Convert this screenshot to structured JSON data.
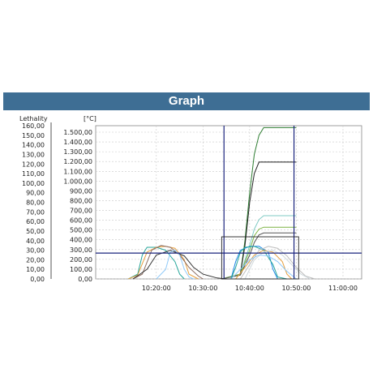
{
  "title": "Graph",
  "chart_data": {
    "type": "line",
    "title": "Graph",
    "left_axis_label": "Lethality",
    "right_axis_label": "[°C]",
    "left_ticks": [
      "160,00",
      "150,00",
      "140,00",
      "130,00",
      "120,00",
      "110,00",
      "100,00",
      "90,00",
      "80,00",
      "70,00",
      "60,00",
      "50,00",
      "40,00",
      "30,00",
      "20,00",
      "10,00",
      "0,00"
    ],
    "right_ticks": [
      "1.500,00",
      "1.400,00",
      "1.300,00",
      "1.200,00",
      "1.100,00",
      "1.000,00",
      "900,00",
      "800,00",
      "700,00",
      "600,00",
      "500,00",
      "400,00",
      "300,00",
      "200,00",
      "100,00",
      "0,00"
    ],
    "x_ticks": [
      "10:20:00",
      "10:30:00",
      "10:40:00",
      "10:50:00",
      "11:00:00"
    ],
    "x_tick_minutes": [
      20,
      30,
      40,
      50,
      60
    ],
    "x_range_minutes": [
      7,
      64
    ],
    "y_range_lethality": [
      0,
      160
    ],
    "grid": true,
    "markers": {
      "vertical_lines_minutes": [
        34.5,
        49.5
      ],
      "horizontal_line_lethality": 27,
      "zoom_box": {
        "x_minutes": [
          34,
          50.5
        ],
        "y_lethality": [
          0,
          44
        ]
      }
    },
    "series": [
      {
        "color": "#2e7d32",
        "points": [
          [
            34,
            0
          ],
          [
            38,
            5
          ],
          [
            39,
            40
          ],
          [
            40,
            90
          ],
          [
            41,
            130
          ],
          [
            42,
            150
          ],
          [
            43,
            158
          ],
          [
            50,
            158
          ]
        ]
      },
      {
        "color": "#222222",
        "points": [
          [
            34,
            0
          ],
          [
            38,
            5
          ],
          [
            39,
            35
          ],
          [
            40,
            80
          ],
          [
            41,
            110
          ],
          [
            42,
            122
          ],
          [
            50,
            122
          ]
        ]
      },
      {
        "color": "#80cbc4",
        "points": [
          [
            34,
            0
          ],
          [
            38,
            5
          ],
          [
            40,
            35
          ],
          [
            41,
            52
          ],
          [
            42,
            62
          ],
          [
            43,
            66
          ],
          [
            50,
            66
          ]
        ]
      },
      {
        "color": "#7cb342",
        "points": [
          [
            34,
            0
          ],
          [
            38,
            5
          ],
          [
            40,
            30
          ],
          [
            41,
            45
          ],
          [
            42,
            52
          ],
          [
            43,
            54
          ],
          [
            50,
            54
          ]
        ]
      },
      {
        "color": "#555555",
        "points": [
          [
            34,
            0
          ],
          [
            38,
            4
          ],
          [
            40,
            25
          ],
          [
            41,
            38
          ],
          [
            42,
            46
          ],
          [
            43,
            48
          ],
          [
            50,
            48
          ]
        ]
      },
      {
        "color": "#26a69a",
        "points": [
          [
            14,
            0
          ],
          [
            16,
            5
          ],
          [
            17,
            25
          ],
          [
            18,
            33
          ],
          [
            20,
            33
          ],
          [
            22,
            30
          ],
          [
            24,
            18
          ],
          [
            25,
            5
          ],
          [
            26,
            0
          ]
        ]
      },
      {
        "color": "#e6a040",
        "points": [
          [
            14,
            0
          ],
          [
            16,
            4
          ],
          [
            18,
            28
          ],
          [
            20,
            33
          ],
          [
            22,
            34
          ],
          [
            24,
            32
          ],
          [
            26,
            20
          ],
          [
            27,
            5
          ],
          [
            29,
            0
          ]
        ]
      },
      {
        "color": "#8d6e63",
        "points": [
          [
            15,
            0
          ],
          [
            17,
            5
          ],
          [
            19,
            30
          ],
          [
            21,
            35
          ],
          [
            23,
            33
          ],
          [
            25,
            25
          ],
          [
            27,
            12
          ],
          [
            29,
            3
          ],
          [
            30,
            0
          ]
        ]
      },
      {
        "color": "#333333",
        "points": [
          [
            15,
            0
          ],
          [
            18,
            10
          ],
          [
            20,
            25
          ],
          [
            23,
            30
          ],
          [
            26,
            24
          ],
          [
            28,
            12
          ],
          [
            30,
            5
          ],
          [
            33,
            1
          ],
          [
            35,
            0
          ]
        ]
      },
      {
        "color": "#90caf9",
        "points": [
          [
            20,
            0
          ],
          [
            22,
            10
          ],
          [
            23,
            28
          ],
          [
            24,
            30
          ],
          [
            25,
            25
          ],
          [
            26,
            10
          ],
          [
            27,
            2
          ],
          [
            28,
            0
          ]
        ]
      },
      {
        "color": "#1e88e5",
        "points": [
          [
            36,
            0
          ],
          [
            37,
            18
          ],
          [
            38,
            30
          ],
          [
            40,
            34
          ],
          [
            42,
            34
          ],
          [
            44,
            28
          ],
          [
            45,
            10
          ],
          [
            46,
            0
          ]
        ]
      },
      {
        "color": "#26a69a",
        "points": [
          [
            36,
            0
          ],
          [
            37,
            12
          ],
          [
            38,
            28
          ],
          [
            39,
            33
          ],
          [
            41,
            34
          ],
          [
            43,
            30
          ],
          [
            45,
            15
          ],
          [
            46,
            2
          ],
          [
            48,
            0
          ]
        ]
      },
      {
        "color": "#e6a040",
        "points": [
          [
            37,
            0
          ],
          [
            39,
            12
          ],
          [
            41,
            25
          ],
          [
            43,
            30
          ],
          [
            45,
            28
          ],
          [
            47,
            18
          ],
          [
            48,
            5
          ],
          [
            49,
            0
          ]
        ]
      },
      {
        "color": "#bdbdbd",
        "points": [
          [
            38,
            0
          ],
          [
            40,
            15
          ],
          [
            42,
            30
          ],
          [
            44,
            34
          ],
          [
            46,
            32
          ],
          [
            48,
            24
          ],
          [
            50,
            12
          ],
          [
            52,
            3
          ],
          [
            54,
            0
          ]
        ]
      },
      {
        "color": "#cfd8dc",
        "points": [
          [
            39,
            0
          ],
          [
            41,
            20
          ],
          [
            43,
            28
          ],
          [
            45,
            30
          ],
          [
            47,
            25
          ],
          [
            49,
            15
          ],
          [
            51,
            5
          ],
          [
            53,
            0
          ]
        ]
      },
      {
        "color": "#90caf9",
        "points": [
          [
            36,
            0
          ],
          [
            38,
            10
          ],
          [
            40,
            20
          ],
          [
            42,
            25
          ],
          [
            44,
            24
          ],
          [
            46,
            18
          ],
          [
            48,
            8
          ],
          [
            50,
            0
          ]
        ]
      }
    ]
  }
}
